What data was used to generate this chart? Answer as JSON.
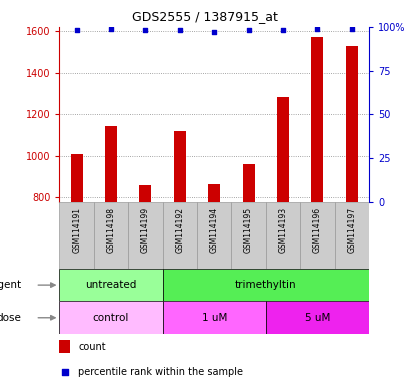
{
  "title": "GDS2555 / 1387915_at",
  "samples": [
    "GSM114191",
    "GSM114198",
    "GSM114199",
    "GSM114192",
    "GSM114194",
    "GSM114195",
    "GSM114193",
    "GSM114196",
    "GSM114197"
  ],
  "counts": [
    1007,
    1143,
    858,
    1120,
    867,
    960,
    1282,
    1570,
    1530
  ],
  "percentile_ranks": [
    98,
    99,
    98,
    98,
    97,
    98,
    98,
    99,
    99
  ],
  "ylim_left": [
    780,
    1620
  ],
  "ylim_right": [
    0,
    100
  ],
  "yticks_left": [
    800,
    1000,
    1200,
    1400,
    1600
  ],
  "yticks_right": [
    0,
    25,
    50,
    75,
    100
  ],
  "bar_color": "#cc0000",
  "dot_color": "#0000cc",
  "agent_groups": [
    {
      "label": "untreated",
      "start": 0,
      "end": 3,
      "color": "#99ff99"
    },
    {
      "label": "trimethyltin",
      "start": 3,
      "end": 9,
      "color": "#55ee55"
    }
  ],
  "dose_groups": [
    {
      "label": "control",
      "start": 0,
      "end": 3,
      "color": "#ffbbff"
    },
    {
      "label": "1 uM",
      "start": 3,
      "end": 6,
      "color": "#ff66ff"
    },
    {
      "label": "5 uM",
      "start": 6,
      "end": 9,
      "color": "#ee22ee"
    }
  ],
  "legend_labels": [
    "count",
    "percentile rank within the sample"
  ],
  "grid_color": "#888888",
  "tick_label_color_left": "#cc0000",
  "tick_label_color_right": "#0000cc",
  "row_label_agent": "agent",
  "row_label_dose": "dose",
  "bar_bottom": 780,
  "sample_box_color": "#cccccc",
  "sample_box_edge": "#999999"
}
